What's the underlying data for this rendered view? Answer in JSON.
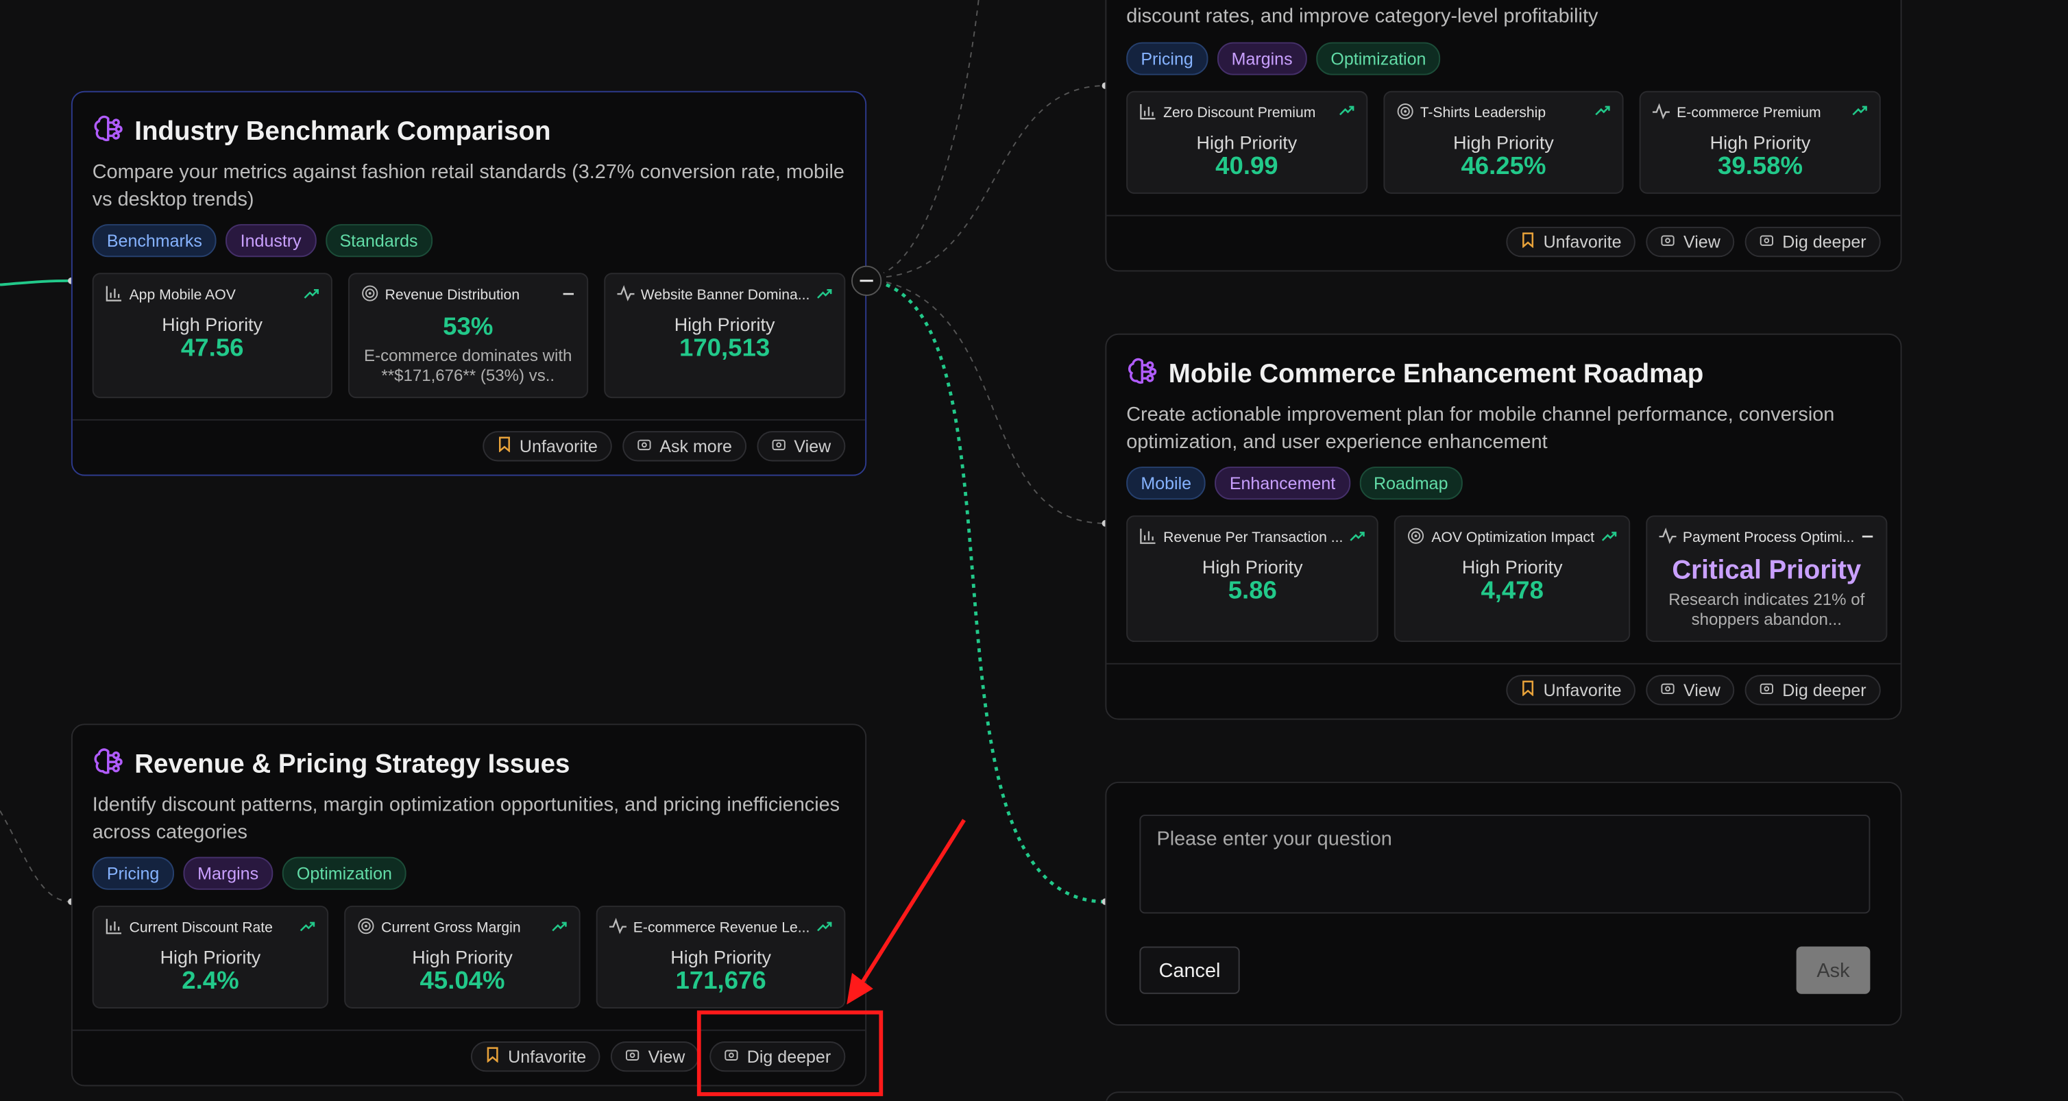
{
  "cards": [
    {
      "description": "discount rates, and improve category-level profitability",
      "tags": [
        "Pricing",
        "Margins",
        "Optimization"
      ],
      "metrics": [
        {
          "label": "Zero Discount Premium",
          "priority": "High Priority",
          "value": "40.99"
        },
        {
          "label": "T-Shirts Leadership",
          "priority": "High Priority",
          "value": "46.25%"
        },
        {
          "label": "E-commerce Premium",
          "priority": "High Priority",
          "value": "39.58%"
        }
      ],
      "actions": [
        "Unfavorite",
        "View",
        "Dig deeper"
      ]
    },
    {
      "title": "Industry Benchmark Comparison",
      "description": "Compare your metrics against fashion retail standards (3.27% conversion rate, mobile vs desktop trends)",
      "tags": [
        "Benchmarks",
        "Industry",
        "Standards"
      ],
      "metrics": [
        {
          "label": "App Mobile AOV",
          "priority": "High Priority",
          "value": "47.56"
        },
        {
          "label": "Revenue Distribution",
          "value": "53%",
          "note": "E-commerce dominates with **$171,676** (53%) vs.."
        },
        {
          "label": "Website Banner Domina...",
          "priority": "High Priority",
          "value": "170,513"
        }
      ],
      "actions": [
        "Unfavorite",
        "Ask more",
        "View"
      ]
    },
    {
      "title": "Mobile Commerce Enhancement Roadmap",
      "description": "Create actionable improvement plan for mobile channel performance, conversion optimization, and user experience enhancement",
      "tags": [
        "Mobile",
        "Enhancement",
        "Roadmap"
      ],
      "metrics": [
        {
          "label": "Revenue Per Transaction ...",
          "priority": "High Priority",
          "value": "5.86"
        },
        {
          "label": "AOV Optimization Impact",
          "priority": "High Priority",
          "value": "4,478"
        },
        {
          "label": "Payment Process Optimi...",
          "priority": "Critical Priority",
          "note": "Research indicates 21% of shoppers abandon..."
        }
      ],
      "actions": [
        "Unfavorite",
        "View",
        "Dig deeper"
      ]
    },
    {
      "title": "Revenue & Pricing Strategy Issues",
      "description": "Identify discount patterns, margin optimization opportunities, and pricing inefficiencies across categories",
      "tags": [
        "Pricing",
        "Margins",
        "Optimization"
      ],
      "metrics": [
        {
          "label": "Current Discount Rate",
          "priority": "High Priority",
          "value": "2.4%"
        },
        {
          "label": "Current Gross Margin",
          "priority": "High Priority",
          "value": "45.04%"
        },
        {
          "label": "E-commerce Revenue Le...",
          "priority": "High Priority",
          "value": "171,676"
        }
      ],
      "actions": [
        "Unfavorite",
        "View",
        "Dig deeper"
      ]
    }
  ],
  "question": {
    "placeholder": "Please enter your question",
    "cancel": "Cancel",
    "ask": "Ask"
  }
}
